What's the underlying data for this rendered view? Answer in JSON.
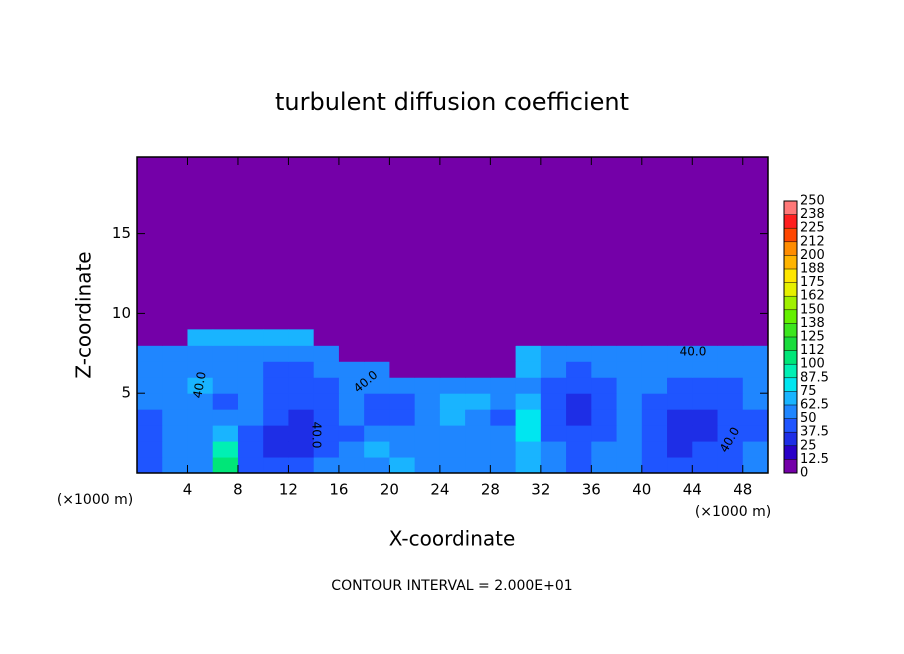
{
  "chart_data": {
    "type": "heatmap",
    "title": "turbulent diffusion coefficient",
    "x_label": "X-coordinate",
    "y_label": "Z-coordinate",
    "x_unit": "(×1000 m)",
    "y_unit": "(×1000 m)",
    "footer": "CONTOUR INTERVAL = 2.000E+01",
    "xlim": [
      0,
      50
    ],
    "ylim": [
      0,
      19.8
    ],
    "xticks": [
      4,
      8,
      12,
      16,
      20,
      24,
      28,
      32,
      36,
      40,
      44,
      48
    ],
    "yticks": [
      5,
      10,
      15
    ],
    "x": [
      1,
      3,
      5,
      7,
      9,
      11,
      13,
      15,
      17,
      19,
      21,
      23,
      25,
      27,
      29,
      31,
      33,
      35,
      37,
      39,
      41,
      43,
      45,
      47,
      49
    ],
    "y": [
      0.5,
      1.5,
      2.5,
      3.5,
      4.5,
      5.5,
      6.5,
      7.5,
      8.5
    ],
    "z": [
      [
        45,
        55,
        60,
        100,
        45,
        40,
        42,
        50,
        55,
        60,
        65,
        55,
        50,
        55,
        60,
        70,
        60,
        45,
        55,
        60,
        45,
        40,
        42,
        45,
        55
      ],
      [
        40,
        50,
        55,
        90,
        40,
        35,
        35,
        40,
        50,
        65,
        60,
        55,
        50,
        50,
        55,
        65,
        50,
        40,
        50,
        55,
        40,
        35,
        38,
        40,
        50
      ],
      [
        42,
        55,
        50,
        70,
        45,
        35,
        35,
        38,
        45,
        55,
        60,
        50,
        60,
        55,
        50,
        75,
        45,
        38,
        45,
        50,
        40,
        35,
        35,
        40,
        45
      ],
      [
        45,
        60,
        55,
        50,
        50,
        38,
        35,
        38,
        50,
        45,
        40,
        55,
        65,
        60,
        45,
        80,
        40,
        35,
        40,
        50,
        45,
        35,
        35,
        40,
        45
      ],
      [
        50,
        55,
        60,
        45,
        55,
        40,
        38,
        40,
        55,
        40,
        45,
        60,
        65,
        65,
        55,
        70,
        38,
        35,
        40,
        55,
        45,
        38,
        38,
        42,
        50
      ],
      [
        55,
        50,
        65,
        50,
        55,
        42,
        40,
        45,
        50,
        50,
        60,
        55,
        55,
        55,
        60,
        60,
        40,
        38,
        45,
        55,
        50,
        45,
        42,
        45,
        50
      ],
      [
        55,
        55,
        60,
        55,
        50,
        45,
        45,
        50,
        55,
        60,
        0,
        0,
        0,
        0,
        0,
        65,
        50,
        45,
        50,
        55,
        55,
        50,
        50,
        50,
        55
      ],
      [
        60,
        60,
        55,
        60,
        55,
        55,
        55,
        60,
        0,
        0,
        0,
        0,
        0,
        0,
        0,
        65,
        60,
        55,
        60,
        60,
        55,
        60,
        60,
        60,
        60
      ],
      [
        0,
        0,
        65,
        65,
        65,
        65,
        65,
        0,
        0,
        0,
        0,
        0,
        0,
        0,
        0,
        0,
        0,
        0,
        0,
        0,
        0,
        0,
        0,
        0,
        0
      ]
    ],
    "background_color": "#7400a8",
    "colorbar_ticks": [
      0,
      12.5,
      25,
      37.5,
      50,
      62.5,
      75,
      87.5,
      100,
      {
        "value": 112.5,
        "label": "112"
      },
      125,
      {
        "value": 137.5,
        "label": "138"
      },
      150,
      {
        "value": 162.5,
        "label": "162"
      },
      175,
      {
        "value": 187.5,
        "label": "188"
      },
      200,
      {
        "value": 212.5,
        "label": "212"
      },
      225,
      {
        "value": 237.5,
        "label": "238"
      },
      250
    ],
    "colors": [
      "#7400a8",
      "#2a00c8",
      "#1e2ee6",
      "#1f55ff",
      "#1f86ff",
      "#19b4ff",
      "#00e6f0",
      "#00f0b4",
      "#00e678",
      "#19dc3c",
      "#3ce61e",
      "#64f000",
      "#a0f000",
      "#e6f000",
      "#ffe600",
      "#ffb400",
      "#ff8c00",
      "#ff4600",
      "#ff1e1e",
      "#ff7878"
    ],
    "annotations": [
      "40.0",
      "40.0",
      "40.0",
      "40.0",
      "40.0"
    ]
  }
}
